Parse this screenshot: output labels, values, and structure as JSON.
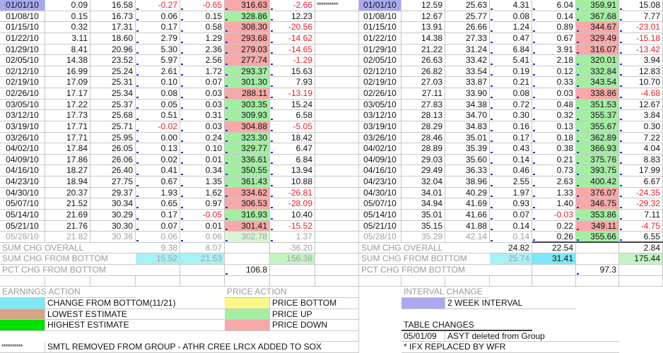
{
  "colors": {
    "price_up": "#a4eea4",
    "price_down": "#f7a8a8",
    "change_from_bottom": "#7ee8f4",
    "lowest_estimate": "#d4a484",
    "highest_estimate": "#00e000",
    "price_bottom": "#f8f888",
    "interval": "#a9a9f0",
    "negative_text": "#e8202a"
  },
  "separator": "**********",
  "left_rows": [
    [
      "01/01/10",
      "0.09",
      "16.58",
      "-0.27",
      "-0.65",
      "316.63",
      "-2.66"
    ],
    [
      "01/08/10",
      "0.15",
      "16.73",
      "0.06",
      "0.15",
      "328.86",
      "12.23"
    ],
    [
      "01/15/10",
      "0.32",
      "17.31",
      "0.17",
      "0.58",
      "308.30",
      "-20.56"
    ],
    [
      "01/22/10",
      "3.11",
      "18.60",
      "2.79",
      "1.29",
      "293.68",
      "-14.62"
    ],
    [
      "01/29/10",
      "8.41",
      "20.96",
      "5.30",
      "2.36",
      "279.03",
      "-14.65"
    ],
    [
      "02/05/10",
      "14.38",
      "23.52",
      "5.97",
      "2.56",
      "277.74",
      "-1.29"
    ],
    [
      "02/12/10",
      "16.99",
      "25.24",
      "2.61",
      "1.72",
      "293.37",
      "15.63"
    ],
    [
      "02/19/10",
      "17.09",
      "25.31",
      "0.10",
      "0.07",
      "301.30",
      "7.93"
    ],
    [
      "02/26/10",
      "17.17",
      "25.34",
      "0.08",
      "0.03",
      "288.11",
      "-13.19"
    ],
    [
      "03/05/10",
      "17.22",
      "25.37",
      "0.05",
      "0.03",
      "303.35",
      "15.24"
    ],
    [
      "03/12/10",
      "17.73",
      "25.68",
      "0.51",
      "0.31",
      "309.93",
      "6.58"
    ],
    [
      "03/19/10",
      "17.71",
      "25.71",
      "-0.02",
      "0.03",
      "304.88",
      "-5.05"
    ],
    [
      "03/26/10",
      "17.71",
      "25.95",
      "0.00",
      "0.24",
      "323.30",
      "18.42"
    ],
    [
      "04/02/10",
      "17.84",
      "26.05",
      "0.13",
      "0.10",
      "329.77",
      "6.47"
    ],
    [
      "04/09/10",
      "17.86",
      "26.06",
      "0.02",
      "0.01",
      "336.61",
      "6.84"
    ],
    [
      "04/16/10",
      "18.27",
      "26.40",
      "0.41",
      "0.34",
      "350.55",
      "13.94"
    ],
    [
      "04/23/10",
      "18.94",
      "27.75",
      "0.67",
      "1.35",
      "361.43",
      "10.88"
    ],
    [
      "04/30/10",
      "20.37",
      "29.37",
      "1.93",
      "1.62",
      "334.62",
      "-26.81"
    ],
    [
      "05/07/10",
      "21.52",
      "30.34",
      "0.65",
      "0.97",
      "306.53",
      "-28.09"
    ],
    [
      "05/14/10",
      "21.69",
      "30.29",
      "0.17",
      "-0.05",
      "316.93",
      "10.40"
    ],
    [
      "05/21/10",
      "21.76",
      "30.30",
      "0.07",
      "0.01",
      "301.41",
      "-15.52"
    ],
    [
      "05/28/10",
      "21.82",
      "30.36",
      "0.06",
      "0.06",
      "302.78",
      "1.37"
    ]
  ],
  "right_rows": [
    [
      "01/01/10",
      "12.59",
      "25.63",
      "4.31",
      "6.04",
      "359.91",
      "15.08"
    ],
    [
      "01/08/10",
      "12.67",
      "25.77",
      "0.08",
      "0.14",
      "367.68",
      "7.77"
    ],
    [
      "01/15/10",
      "13.91",
      "26.66",
      "1.24",
      "0.89",
      "344.67",
      "-23.01"
    ],
    [
      "01/22/10",
      "14.38",
      "27.33",
      "0.47",
      "0.67",
      "329.49",
      "-15.18"
    ],
    [
      "01/29/10",
      "21.22",
      "31.24",
      "6.84",
      "3.91",
      "316.07",
      "-13.42"
    ],
    [
      "02/05/10",
      "26.63",
      "33.42",
      "5.41",
      "2.18",
      "320.01",
      "3.94"
    ],
    [
      "02/12/10",
      "26.82",
      "33.54",
      "0.19",
      "0.12",
      "332.84",
      "12.83"
    ],
    [
      "02/19/10",
      "27.03",
      "33.87",
      "0.21",
      "0.33",
      "343.54",
      "10.70"
    ],
    [
      "02/26/10",
      "27.11",
      "33.90",
      "0.08",
      "0.03",
      "338.86",
      "-4.68"
    ],
    [
      "03/05/10",
      "27.83",
      "34.38",
      "0.72",
      "0.48",
      "351.53",
      "12.67"
    ],
    [
      "03/12/10",
      "28.13",
      "34.70",
      "0.30",
      "0.32",
      "355.37",
      "3.84"
    ],
    [
      "03/19/10",
      "28.29",
      "34.83",
      "0.16",
      "0.13",
      "355.67",
      "0.30"
    ],
    [
      "03/26/10",
      "28.46",
      "35.01",
      "0.17",
      "0.18",
      "362.89",
      "7.22"
    ],
    [
      "04/02/10",
      "28.89",
      "35.39",
      "0.43",
      "0.38",
      "366.93",
      "4.04"
    ],
    [
      "04/09/10",
      "29.03",
      "35.60",
      "0.14",
      "0.21",
      "375.76",
      "8.83"
    ],
    [
      "04/16/10",
      "29.49",
      "36.33",
      "0.46",
      "0.73",
      "393.75",
      "17.99"
    ],
    [
      "04/23/10",
      "32.04",
      "38.96",
      "2.55",
      "2.63",
      "400.42",
      "6.67"
    ],
    [
      "04/30/10",
      "34.01",
      "40.29",
      "1.97",
      "1.33",
      "376.07",
      "-24.35"
    ],
    [
      "05/07/10",
      "34.94",
      "41.69",
      "0.93",
      "1.40",
      "346.75",
      "-29.32"
    ],
    [
      "05/14/10",
      "35.01",
      "41.66",
      "0.07",
      "-0.03",
      "353.86",
      "7.11"
    ],
    [
      "05/21/10",
      "35.15",
      "41.88",
      "0.14",
      "0.22",
      "349.11",
      "-4.75"
    ],
    [
      "05/28/10",
      "35.29",
      "42.14",
      "0.14",
      "0.26",
      "355.66",
      "6.55"
    ]
  ],
  "summary": {
    "left": {
      "sum_overall_label": "SUM CHG OVERALL",
      "sum_overall": [
        "9.38",
        "8.07",
        "-36.20"
      ],
      "sum_bottom_label": "SUM CHG FROM BOTTOM",
      "sum_bottom": [
        "15.52",
        "21.53",
        "156.38"
      ],
      "pct_label": "PCT CHG FROM BOTTOM",
      "pct": "106.8"
    },
    "right": {
      "sum_overall_label": "SUM CHG OVERALL",
      "sum_overall": [
        "24.82",
        "22.54",
        "2.84"
      ],
      "sum_bottom_label": "SUM CHG FROM BOTTOM",
      "sum_bottom": [
        "25.74",
        "31.41",
        "175.44"
      ],
      "pct_label": "PCT CHG FROM BOTTOM",
      "pct": "97.3"
    }
  },
  "legend": {
    "earnings_title": "EARNINGS ACTION",
    "change_from_bottom": "CHANGE FROM BOTTOM(11/21)",
    "lowest_estimate": "LOWEST ESTIMATE",
    "highest_estimate": "HIGHEST ESTIMATE",
    "price_title": "PRICE ACTION",
    "price_bottom": "PRICE BOTTOM",
    "price_up": "PRICE UP",
    "price_down": "PRICE DOWN",
    "interval_title": "INTERVAL CHANGE",
    "interval": "2 WEEK INTERVAL"
  },
  "notes": {
    "table_changes_title": "TABLE CHANGES",
    "change1_date": "05/01/09",
    "change1_text": "ASYT deleted from Group",
    "change2": "*  IFX REPLACED BY WFR",
    "footnote_marker": "**********",
    "footnote": "SMTL REMOVED FROM GROUP - ATHR CREE LRCX ADDED TO SOX"
  }
}
